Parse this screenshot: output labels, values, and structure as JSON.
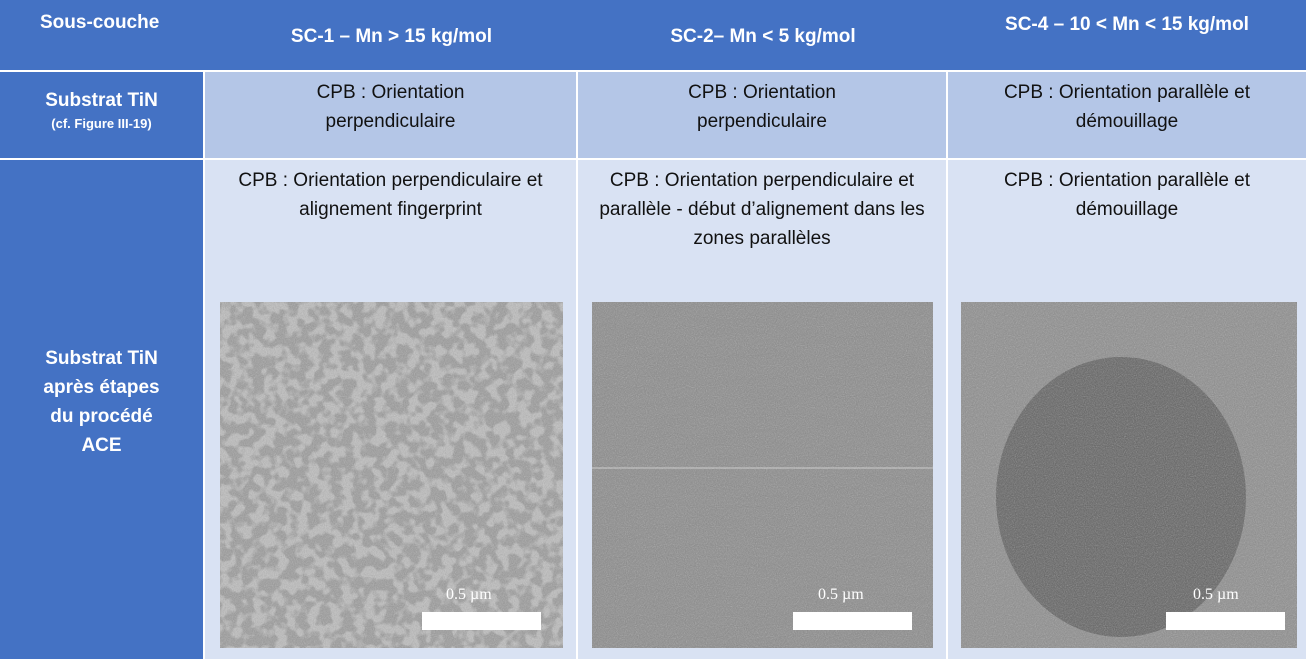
{
  "table": {
    "header": [
      "Sous-couche",
      "SC-1 – Mn > 15 kg/mol",
      "SC-2– Mn < 5 kg/mol",
      "SC-4 – 10 < Mn < 15 kg/mol"
    ],
    "rows": [
      {
        "label": "Substrat TiN",
        "note": "(cf. Figure III-19)",
        "cells": [
          "CPB : Orientation perpendiculaire",
          "CPB : Orientation perpendiculaire",
          "CPB : Orientation parallèle et démouillage"
        ]
      },
      {
        "label": "Substrat TiN après étapes du procédé ACE",
        "cells": [
          "CPB : Orientation perpendiculaire et alignement fingerprint",
          "CPB : Orientation perpendiculaire et parallèle - début d’alignement dans les zones parallèles",
          "CPB : Orientation parallèle et démouillage"
        ],
        "scale_bars": [
          "0.5 µm",
          "0.5 µm",
          "0.5 µm"
        ]
      }
    ]
  }
}
